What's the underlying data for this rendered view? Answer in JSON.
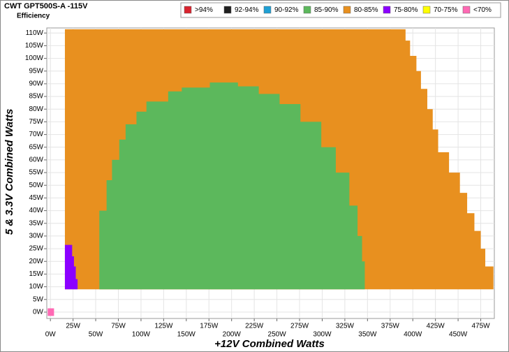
{
  "chart_data": {
    "type": "region",
    "title": "CWT GPT500S-A -115V",
    "subtitle": "Efficiency",
    "x_label": "+12V Combined Watts",
    "y_label": "5 & 3.3V Combined Watts",
    "xlim": [
      -4,
      490
    ],
    "ylim": [
      -2.5,
      112
    ],
    "grid": true,
    "xticks": [
      {
        "value": 0,
        "label": "0W"
      },
      {
        "value": 25,
        "label": "25W"
      },
      {
        "value": 50,
        "label": "50W"
      },
      {
        "value": 75,
        "label": "75W"
      },
      {
        "value": 100,
        "label": "100W"
      },
      {
        "value": 125,
        "label": "125W"
      },
      {
        "value": 150,
        "label": "150W"
      },
      {
        "value": 175,
        "label": "175W"
      },
      {
        "value": 200,
        "label": "200W"
      },
      {
        "value": 225,
        "label": "225W"
      },
      {
        "value": 250,
        "label": "250W"
      },
      {
        "value": 275,
        "label": "275W"
      },
      {
        "value": 300,
        "label": "300W"
      },
      {
        "value": 325,
        "label": "325W"
      },
      {
        "value": 350,
        "label": "350W"
      },
      {
        "value": 375,
        "label": "375W"
      },
      {
        "value": 400,
        "label": "400W"
      },
      {
        "value": 425,
        "label": "425W"
      },
      {
        "value": 450,
        "label": "450W"
      },
      {
        "value": 475,
        "label": "475W"
      }
    ],
    "yticks": [
      {
        "value": 0,
        "label": "0W"
      },
      {
        "value": 5,
        "label": "5W"
      },
      {
        "value": 10,
        "label": "10W"
      },
      {
        "value": 15,
        "label": "15W"
      },
      {
        "value": 20,
        "label": "20W"
      },
      {
        "value": 25,
        "label": "25W"
      },
      {
        "value": 30,
        "label": "30W"
      },
      {
        "value": 35,
        "label": "35W"
      },
      {
        "value": 40,
        "label": "40W"
      },
      {
        "value": 45,
        "label": "45W"
      },
      {
        "value": 50,
        "label": "50W"
      },
      {
        "value": 55,
        "label": "55W"
      },
      {
        "value": 60,
        "label": "60W"
      },
      {
        "value": 65,
        "label": "65W"
      },
      {
        "value": 70,
        "label": "70W"
      },
      {
        "value": 75,
        "label": "75W"
      },
      {
        "value": 80,
        "label": "80W"
      },
      {
        "value": 85,
        "label": "85W"
      },
      {
        "value": 90,
        "label": "90W"
      },
      {
        "value": 95,
        "label": "95W"
      },
      {
        "value": 100,
        "label": "100W"
      },
      {
        "value": 105,
        "label": "105W"
      },
      {
        "value": 110,
        "label": "110W"
      }
    ],
    "series": [
      {
        "name": ">94%",
        "color": "#d9232e",
        "bins": [],
        "values": []
      },
      {
        "name": "92-94%",
        "color": "#1f1f1f",
        "bins": [],
        "values": []
      },
      {
        "name": "90-92%",
        "color": "#1e9fd4",
        "bins": [],
        "values": []
      },
      {
        "name": "85-90%",
        "color": "#5cb85c",
        "base": 9,
        "bins": [
          54,
          62,
          68,
          76,
          83,
          95,
          106,
          130,
          145,
          176,
          207,
          230,
          253,
          276,
          299,
          315,
          330,
          339,
          344,
          347
        ],
        "values": [
          40,
          52,
          60,
          68,
          74,
          79,
          83,
          87,
          88.5,
          90.5,
          89,
          86,
          82,
          75,
          65,
          55,
          42,
          30,
          20
        ]
      },
      {
        "name": "80-85%",
        "color": "#e8901f",
        "base": 9,
        "bins": [
          16,
          392,
          397,
          404,
          409,
          416,
          422,
          428,
          440,
          452,
          460,
          468,
          475,
          480,
          489
        ],
        "values": [
          111.5,
          107,
          101,
          95,
          88,
          80,
          72,
          63,
          55,
          47,
          39,
          32,
          25,
          18
        ]
      },
      {
        "name": "75-80%",
        "color": "#8b00ff",
        "base": 9,
        "bins": [
          16,
          24,
          26,
          28,
          30
        ],
        "values": [
          26.5,
          22,
          18,
          13
        ]
      },
      {
        "name": "70-75%",
        "color": "#ffff00",
        "bins": [],
        "values": []
      },
      {
        "name": "<70%",
        "color": "#ff69b4",
        "base": -1.5,
        "bins": [
          -3,
          4
        ],
        "values": [
          1.5
        ]
      }
    ]
  }
}
